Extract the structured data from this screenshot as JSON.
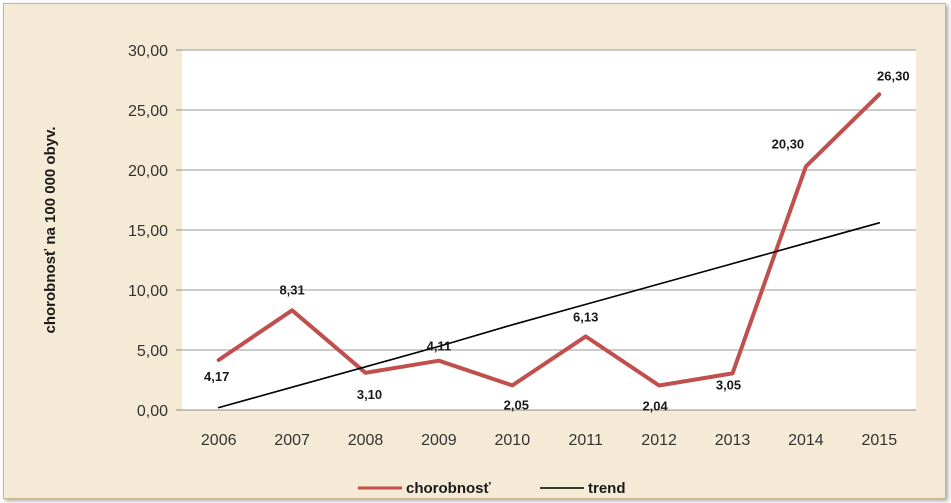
{
  "chart_data": {
    "type": "line",
    "ylabel": "chorobnosť na 100 000 obyv.",
    "xlabel": "",
    "categories": [
      "2006",
      "2007",
      "2008",
      "2009",
      "2010",
      "2011",
      "2012",
      "2013",
      "2014",
      "2015"
    ],
    "ylim": [
      0,
      30
    ],
    "yticks": [
      "0,00",
      "5,00",
      "10,00",
      "15,00",
      "20,00",
      "25,00",
      "30,00"
    ],
    "grid": true,
    "legend": "bottom",
    "series": [
      {
        "name": "chorobnosť",
        "color": "#c0504d",
        "values": [
          4.17,
          8.31,
          3.1,
          4.11,
          2.05,
          6.13,
          2.04,
          3.05,
          20.3,
          26.3
        ],
        "labels": [
          "4,17",
          "8,31",
          "3,10",
          "4,11",
          "2,05",
          "6,13",
          "2,04",
          "3,05",
          "20,30",
          "26,30"
        ]
      },
      {
        "name": "trend",
        "color": "#000000",
        "values": [
          0.2,
          1.9,
          3.6,
          5.3,
          7.1,
          8.8,
          10.5,
          12.2,
          13.9,
          15.6
        ]
      }
    ]
  }
}
